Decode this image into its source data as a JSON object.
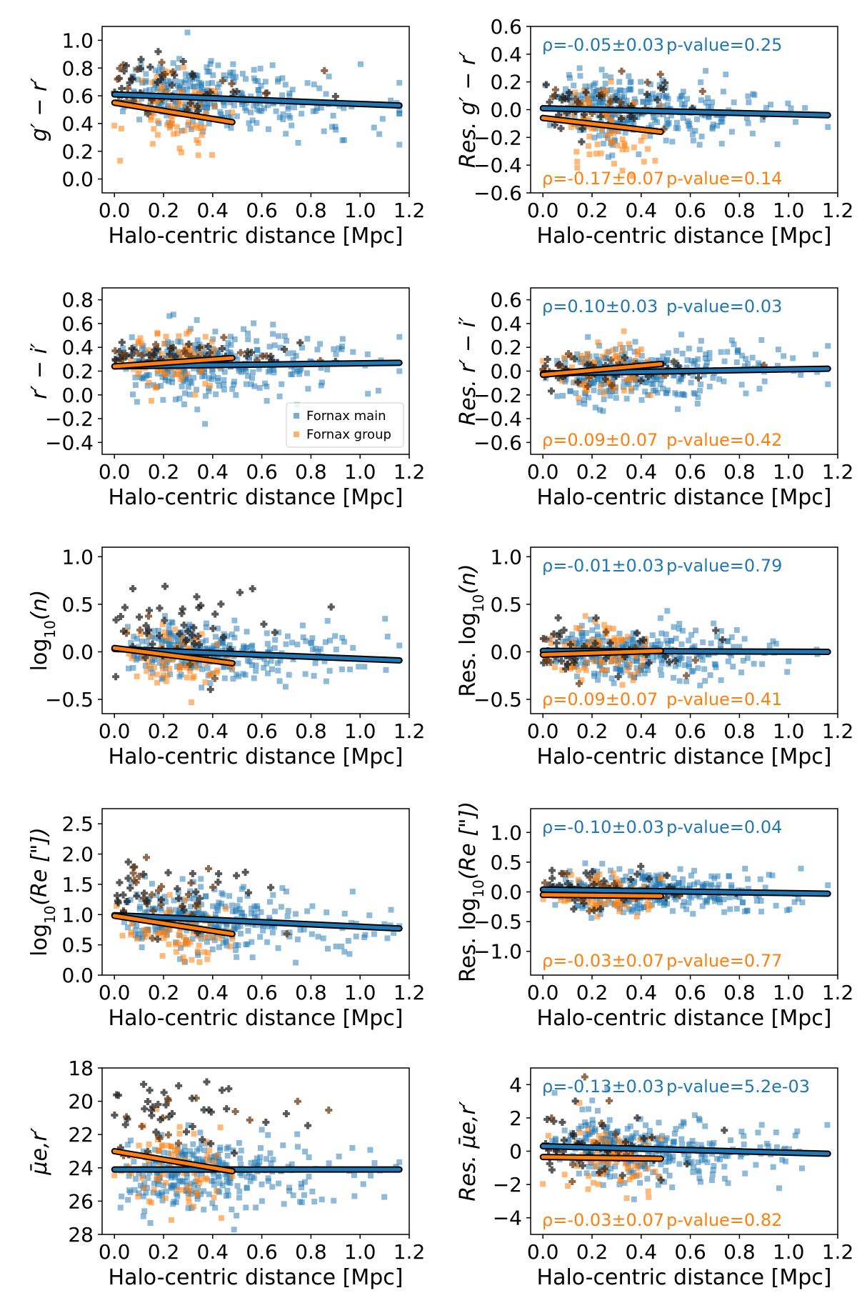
{
  "colors": {
    "main": "#1f77b4",
    "group": "#ff7f0e",
    "cross": "#222222",
    "fit_outline": "#000000"
  },
  "legend": {
    "main": "Fornax main",
    "group": "Fornax group"
  },
  "chart_data": [
    {
      "type": "scatter",
      "xlabel": "Halo-centric distance [Mpc]",
      "ylabel": "g′ − r′",
      "xlim": [
        -0.05,
        1.2
      ],
      "ylim": [
        -0.1,
        1.1
      ],
      "xticks": [
        "0.0",
        "0.2",
        "0.4",
        "0.6",
        "0.8",
        "1.0",
        "1.2"
      ],
      "yticks": [
        "0.0",
        "0.2",
        "0.4",
        "0.6",
        "0.8",
        "1.0"
      ],
      "ytick_values": [
        0.0,
        0.2,
        0.4,
        0.6,
        0.8,
        1.0
      ],
      "fits": [
        {
          "name": "Fornax main",
          "x": [
            0.0,
            1.16
          ],
          "y": [
            0.61,
            0.53
          ]
        },
        {
          "name": "Fornax group",
          "x": [
            0.0,
            0.48
          ],
          "y": [
            0.55,
            0.41
          ]
        }
      ],
      "scatter": {
        "main_center": 0.58,
        "main_spread": 0.12,
        "group_center": 0.45,
        "group_spread": 0.15,
        "cross_center": 0.68,
        "cross_spread": 0.1
      }
    },
    {
      "type": "scatter",
      "xlabel": "Halo-centric distance [Mpc]",
      "ylabel": "Res. g′ − r′",
      "xlim": [
        -0.05,
        1.2
      ],
      "ylim": [
        -0.6,
        0.6
      ],
      "xticks": [
        "0.0",
        "0.2",
        "0.4",
        "0.6",
        "0.8",
        "1.0",
        "1.2"
      ],
      "yticks": [
        "−0.6",
        "−0.4",
        "−0.2",
        "0.0",
        "0.2",
        "0.4",
        "0.6"
      ],
      "ytick_values": [
        -0.6,
        -0.4,
        -0.2,
        0.0,
        0.2,
        0.4,
        0.6
      ],
      "fits": [
        {
          "name": "Fornax main",
          "x": [
            0.0,
            1.16
          ],
          "y": [
            0.01,
            -0.04
          ]
        },
        {
          "name": "Fornax group",
          "x": [
            0.0,
            0.48
          ],
          "y": [
            -0.06,
            -0.16
          ]
        }
      ],
      "stats": {
        "main": {
          "rho": "ρ=-0.05±0.03",
          "p": "p-value=0.25"
        },
        "group": {
          "rho": "ρ=-0.17±0.07",
          "p": "p-value=0.14"
        }
      },
      "scatter": {
        "main_center": 0.0,
        "main_spread": 0.12,
        "group_center": -0.1,
        "group_spread": 0.14,
        "cross_center": 0.03,
        "cross_spread": 0.1
      }
    },
    {
      "type": "scatter",
      "xlabel": "Halo-centric distance [Mpc]",
      "ylabel": "r′ − i′",
      "xlim": [
        -0.05,
        1.2
      ],
      "ylim": [
        -0.5,
        0.9
      ],
      "xticks": [
        "0.0",
        "0.2",
        "0.4",
        "0.6",
        "0.8",
        "1.0",
        "1.2"
      ],
      "yticks": [
        "−0.4",
        "−0.2",
        "0.0",
        "0.2",
        "0.4",
        "0.6",
        "0.8"
      ],
      "ytick_values": [
        -0.4,
        -0.2,
        0.0,
        0.2,
        0.4,
        0.6,
        0.8
      ],
      "fits": [
        {
          "name": "Fornax main",
          "x": [
            0.0,
            1.16
          ],
          "y": [
            0.24,
            0.27
          ]
        },
        {
          "name": "Fornax group",
          "x": [
            0.0,
            0.48
          ],
          "y": [
            0.24,
            0.31
          ]
        }
      ],
      "legend": true,
      "scatter": {
        "main_center": 0.25,
        "main_spread": 0.13,
        "group_center": 0.27,
        "group_spread": 0.12,
        "cross_center": 0.34,
        "cross_spread": 0.05
      }
    },
    {
      "type": "scatter",
      "xlabel": "Halo-centric distance [Mpc]",
      "ylabel": "Res. r′ − i′",
      "xlim": [
        -0.05,
        1.2
      ],
      "ylim": [
        -0.7,
        0.7
      ],
      "xticks": [
        "0.0",
        "0.2",
        "0.4",
        "0.6",
        "0.8",
        "1.0",
        "1.2"
      ],
      "yticks": [
        "−0.6",
        "−0.4",
        "−0.2",
        "0.0",
        "0.2",
        "0.4",
        "0.6"
      ],
      "ytick_values": [
        -0.6,
        -0.4,
        -0.2,
        0.0,
        0.2,
        0.4,
        0.6
      ],
      "fits": [
        {
          "name": "Fornax main",
          "x": [
            0.0,
            1.16
          ],
          "y": [
            -0.02,
            0.02
          ]
        },
        {
          "name": "Fornax group",
          "x": [
            0.0,
            0.48
          ],
          "y": [
            -0.03,
            0.06
          ]
        }
      ],
      "stats": {
        "main": {
          "rho": "ρ=0.10±0.03",
          "p": "p-value=0.03"
        },
        "group": {
          "rho": "ρ=0.09±0.07",
          "p": "p-value=0.42"
        }
      },
      "scatter": {
        "main_center": 0.0,
        "main_spread": 0.12,
        "group_center": 0.02,
        "group_spread": 0.13,
        "cross_center": 0.0,
        "cross_spread": 0.06
      }
    },
    {
      "type": "scatter",
      "xlabel": "Halo-centric distance [Mpc]",
      "ylabel": "log10(n)",
      "ylabel_base": "log",
      "ylabel_sub": "10",
      "ylabel_tail": "(n)",
      "xlim": [
        -0.05,
        1.2
      ],
      "ylim": [
        -0.65,
        1.1
      ],
      "xticks": [
        "0.0",
        "0.2",
        "0.4",
        "0.6",
        "0.8",
        "1.0",
        "1.2"
      ],
      "yticks": [
        "−0.5",
        "0.0",
        "0.5",
        "1.0"
      ],
      "ytick_values": [
        -0.5,
        0.0,
        0.5,
        1.0
      ],
      "fits": [
        {
          "name": "Fornax main",
          "x": [
            0.0,
            1.16
          ],
          "y": [
            0.03,
            -0.09
          ]
        },
        {
          "name": "Fornax group",
          "x": [
            0.0,
            0.48
          ],
          "y": [
            0.04,
            -0.12
          ]
        }
      ],
      "scatter": {
        "main_center": -0.02,
        "main_spread": 0.15,
        "group_center": -0.05,
        "group_spread": 0.15,
        "cross_center": 0.25,
        "cross_spread": 0.25
      }
    },
    {
      "type": "scatter",
      "xlabel": "Halo-centric distance [Mpc]",
      "ylabel": "Res. log10(n)",
      "ylabel_base": "Res. log",
      "ylabel_sub": "10",
      "ylabel_tail": "(n)",
      "xlim": [
        -0.05,
        1.2
      ],
      "ylim": [
        -0.65,
        1.1
      ],
      "xticks": [
        "0.0",
        "0.2",
        "0.4",
        "0.6",
        "0.8",
        "1.0",
        "1.2"
      ],
      "yticks": [
        "−0.5",
        "0.0",
        "0.5",
        "1.0"
      ],
      "ytick_values": [
        -0.5,
        0.0,
        0.5,
        1.0
      ],
      "fits": [
        {
          "name": "Fornax main",
          "x": [
            0.0,
            1.16
          ],
          "y": [
            0.01,
            0.0
          ]
        },
        {
          "name": "Fornax group",
          "x": [
            0.0,
            0.48
          ],
          "y": [
            -0.03,
            0.01
          ]
        }
      ],
      "stats": {
        "main": {
          "rho": "ρ=-0.01±0.03",
          "p": "p-value=0.79"
        },
        "group": {
          "rho": "ρ=0.09±0.07",
          "p": "p-value=0.41"
        }
      },
      "scatter": {
        "main_center": 0.0,
        "main_spread": 0.13,
        "group_center": -0.01,
        "group_spread": 0.13,
        "cross_center": 0.02,
        "cross_spread": 0.15
      }
    },
    {
      "type": "scatter",
      "xlabel": "Halo-centric distance [Mpc]",
      "ylabel": "log10(Re [\"])",
      "ylabel_base": "log",
      "ylabel_sub": "10",
      "ylabel_tail": "(Re [\"])",
      "xlim": [
        -0.05,
        1.2
      ],
      "ylim": [
        0.0,
        2.75
      ],
      "xticks": [
        "0.0",
        "0.2",
        "0.4",
        "0.6",
        "0.8",
        "1.0",
        "1.2"
      ],
      "yticks": [
        "0.0",
        "0.5",
        "1.0",
        "1.5",
        "2.0",
        "2.5"
      ],
      "ytick_values": [
        0.0,
        0.5,
        1.0,
        1.5,
        2.0,
        2.5
      ],
      "fits": [
        {
          "name": "Fornax main",
          "x": [
            0.0,
            1.16
          ],
          "y": [
            0.99,
            0.77
          ]
        },
        {
          "name": "Fornax group",
          "x": [
            0.0,
            0.48
          ],
          "y": [
            0.98,
            0.68
          ]
        }
      ],
      "scatter": {
        "main_center": 0.85,
        "main_spread": 0.25,
        "group_center": 0.75,
        "group_spread": 0.22,
        "cross_center": 1.4,
        "cross_spread": 0.35
      }
    },
    {
      "type": "scatter",
      "xlabel": "Halo-centric distance [Mpc]",
      "ylabel": "Res. log10(Re [\"])",
      "ylabel_base": "Res. log",
      "ylabel_sub": "10",
      "ylabel_tail": "(Re [\"])",
      "xlim": [
        -0.05,
        1.2
      ],
      "ylim": [
        -1.4,
        1.4
      ],
      "xticks": [
        "0.0",
        "0.2",
        "0.4",
        "0.6",
        "0.8",
        "1.0",
        "1.2"
      ],
      "yticks": [
        "−1.0",
        "−0.5",
        "0.0",
        "0.5",
        "1.0"
      ],
      "ytick_values": [
        -1.0,
        -0.5,
        0.0,
        0.5,
        1.0
      ],
      "fits": [
        {
          "name": "Fornax main",
          "x": [
            0.0,
            1.16
          ],
          "y": [
            0.04,
            -0.03
          ]
        },
        {
          "name": "Fornax group",
          "x": [
            0.0,
            0.48
          ],
          "y": [
            -0.05,
            -0.07
          ]
        }
      ],
      "stats": {
        "main": {
          "rho": "ρ=-0.10±0.03",
          "p": "p-value=0.04"
        },
        "group": {
          "rho": "ρ=-0.03±0.07",
          "p": "p-value=0.77"
        }
      },
      "scatter": {
        "main_center": 0.0,
        "main_spread": 0.17,
        "group_center": -0.05,
        "group_spread": 0.18,
        "cross_center": 0.05,
        "cross_spread": 0.18
      }
    },
    {
      "type": "scatter",
      "xlabel": "Halo-centric distance [Mpc]",
      "ylabel": "μ̄e,r′",
      "xlim": [
        -0.05,
        1.2
      ],
      "ylim": [
        28,
        18
      ],
      "xticks": [
        "0.0",
        "0.2",
        "0.4",
        "0.6",
        "0.8",
        "1.0",
        "1.2"
      ],
      "yticks": [
        "18",
        "20",
        "22",
        "24",
        "26",
        "28"
      ],
      "ytick_values": [
        18,
        20,
        22,
        24,
        26,
        28
      ],
      "fits": [
        {
          "name": "Fornax main",
          "x": [
            0.0,
            1.16
          ],
          "y": [
            24.1,
            24.1
          ]
        },
        {
          "name": "Fornax group",
          "x": [
            0.0,
            0.48
          ],
          "y": [
            23.0,
            24.2
          ]
        }
      ],
      "scatter": {
        "main_center": 24.3,
        "main_spread": 1.2,
        "group_center": 24.0,
        "group_spread": 1.2,
        "cross_center": 20.8,
        "cross_spread": 1.3
      }
    },
    {
      "type": "scatter",
      "xlabel": "Halo-centric distance [Mpc]",
      "ylabel": "Res. μ̄e,r′",
      "xlim": [
        -0.05,
        1.2
      ],
      "ylim": [
        -5.0,
        5.0
      ],
      "xticks": [
        "0.0",
        "0.2",
        "0.4",
        "0.6",
        "0.8",
        "1.0",
        "1.2"
      ],
      "yticks": [
        "−4",
        "−2",
        "0",
        "2",
        "4"
      ],
      "ytick_values": [
        -4,
        -2,
        0,
        2,
        4
      ],
      "fits": [
        {
          "name": "Fornax main",
          "x": [
            0.0,
            1.16
          ],
          "y": [
            0.3,
            -0.15
          ]
        },
        {
          "name": "Fornax group",
          "x": [
            0.0,
            0.48
          ],
          "y": [
            -0.35,
            -0.45
          ]
        }
      ],
      "stats": {
        "main": {
          "rho": "ρ=-0.13±0.03",
          "p": "p-value=5.2e-03"
        },
        "group": {
          "rho": "ρ=-0.03±0.07",
          "p": "p-value=0.82"
        }
      },
      "scatter": {
        "main_center": 0.0,
        "main_spread": 1.0,
        "group_center": -0.3,
        "group_spread": 1.0,
        "cross_center": 0.3,
        "cross_spread": 1.1
      }
    }
  ]
}
